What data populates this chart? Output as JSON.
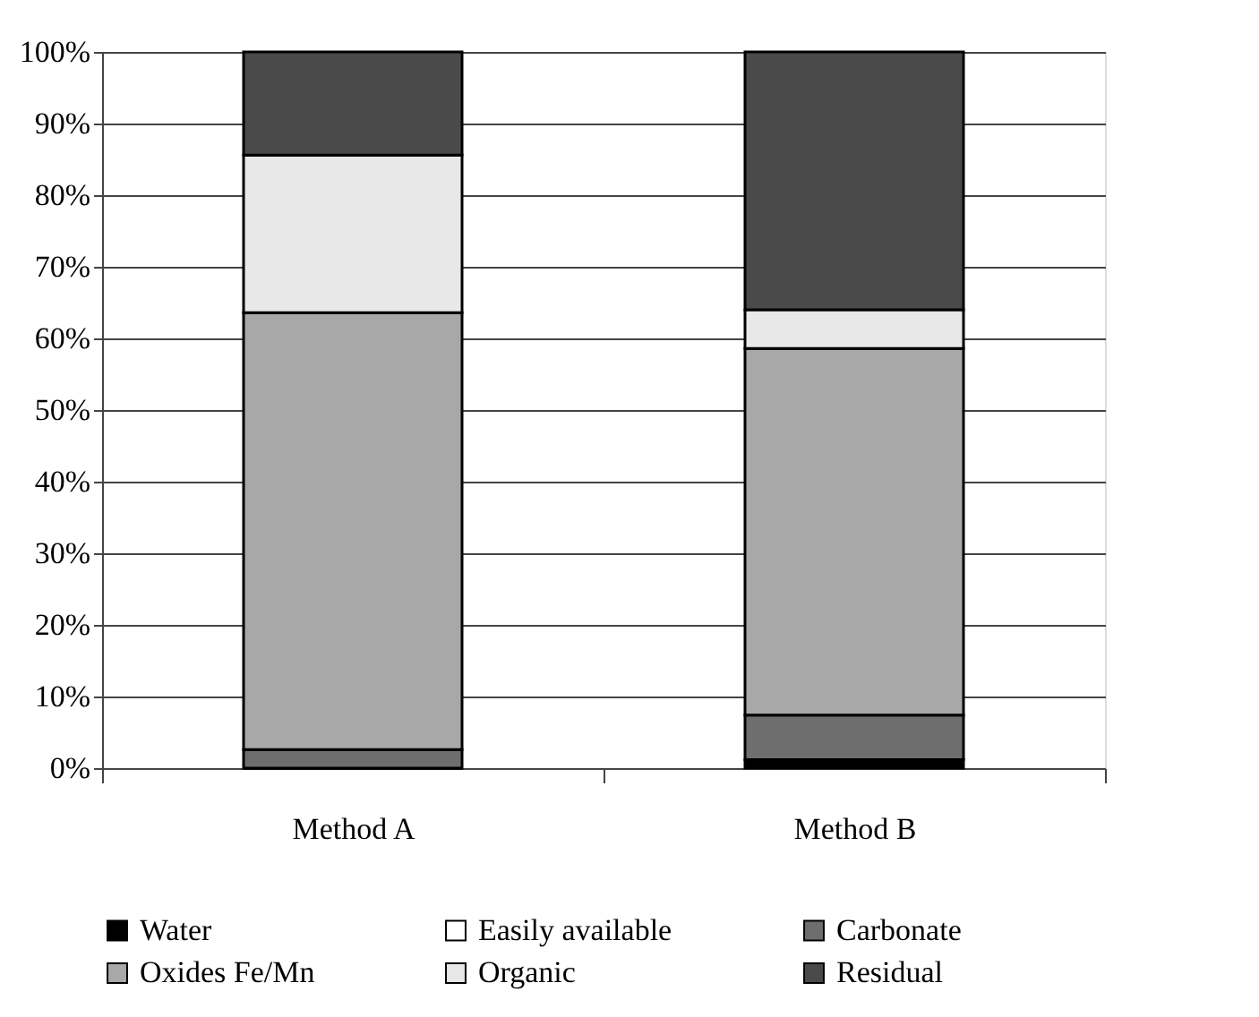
{
  "chart_data": {
    "type": "bar",
    "stacked": true,
    "categories": [
      "Method A",
      "Method B"
    ],
    "series": [
      {
        "name": "Water",
        "color": "#000000",
        "values": [
          0,
          1.2
        ]
      },
      {
        "name": "Easily available",
        "color": "#ffffff",
        "values": [
          0,
          0
        ]
      },
      {
        "name": "Carbonate",
        "color": "#6e6e6e",
        "values": [
          2.6,
          6.2
        ]
      },
      {
        "name": "Oxides Fe/Mn",
        "color": "#a8a8a8",
        "values": [
          61.0,
          51.2
        ]
      },
      {
        "name": "Organic",
        "color": "#e8e8e8",
        "values": [
          22.0,
          5.4
        ]
      },
      {
        "name": "Residual",
        "color": "#4a4a4a",
        "values": [
          14.4,
          36.0
        ]
      }
    ],
    "ylim": [
      0,
      100
    ],
    "yticks": [
      {
        "value": 0,
        "label": "0%"
      },
      {
        "value": 10,
        "label": "10%"
      },
      {
        "value": 20,
        "label": "20%"
      },
      {
        "value": 30,
        "label": "30%"
      },
      {
        "value": 40,
        "label": "40%"
      },
      {
        "value": 50,
        "label": "50%"
      },
      {
        "value": 60,
        "label": "60%"
      },
      {
        "value": 70,
        "label": "70%"
      },
      {
        "value": 80,
        "label": "80%"
      },
      {
        "value": 90,
        "label": "90%"
      },
      {
        "value": 100,
        "label": "100%"
      }
    ],
    "grid": "y",
    "legend": "bottom"
  }
}
